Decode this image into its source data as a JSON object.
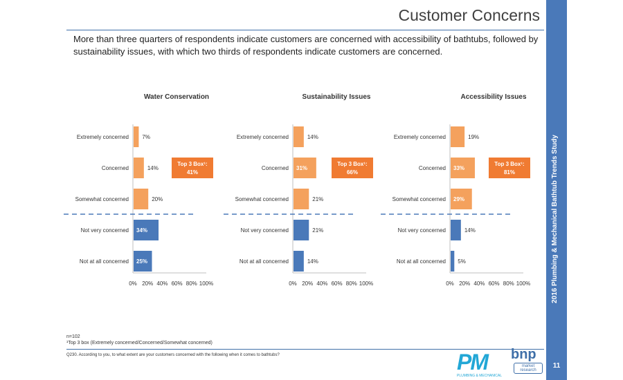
{
  "page": {
    "title": "Customer Concerns",
    "subtitle": "More than three quarters of respondents indicate customers are concerned with accessibility of bathtubs, followed by sustainability issues, with which two thirds of respondents indicate customers are concerned.",
    "sidebar_text": "2016 Plumbing & Mechanical Bathtub Trends Study",
    "page_number": "11",
    "footnote_n": "n=102",
    "footnote_topbox": "¹Top 3 box (Extremely concerned/Concerned/Somewhat concerned)",
    "footnote_question": "Q230. According to you, to what extent are your customers concerned with the following when it comes to bathtubs?",
    "logo_pm": "PM",
    "logo_pm_sub": "PLUMBING & MECHANICAL",
    "logo_bnp": "bnp",
    "logo_bnp_sub": "market research"
  },
  "colors": {
    "orange": "#f4a15d",
    "blue": "#4a79b9",
    "badge": "#f07b32",
    "rule": "#3f6fa8"
  },
  "chart_data": [
    {
      "type": "bar",
      "orientation": "horizontal",
      "title": "Water Conservation",
      "categories": [
        "Extremely concerned",
        "Concerned",
        "Somewhat concerned",
        "Not very concerned",
        "Not at all concerned"
      ],
      "values": [
        7,
        14,
        20,
        34,
        25
      ],
      "labels": [
        "7%",
        "14%",
        "20%",
        "34%",
        "25%"
      ],
      "xlim": [
        0,
        100
      ],
      "ticks": [
        "0%",
        "20%",
        "40%",
        "60%",
        "80%",
        "100%"
      ],
      "callout": {
        "line1": "Top 3 Box¹:",
        "line2": "41%"
      }
    },
    {
      "type": "bar",
      "orientation": "horizontal",
      "title": "Sustainability Issues",
      "categories": [
        "Extremely concerned",
        "Concerned",
        "Somewhat concerned",
        "Not very concerned",
        "Not at all concerned"
      ],
      "values": [
        14,
        31,
        21,
        21,
        14
      ],
      "labels": [
        "14%",
        "31%",
        "21%",
        "21%",
        "14%"
      ],
      "xlim": [
        0,
        100
      ],
      "ticks": [
        "0%",
        "20%",
        "40%",
        "60%",
        "80%",
        "100%"
      ],
      "callout": {
        "line1": "Top 3 Box¹:",
        "line2": "66%"
      }
    },
    {
      "type": "bar",
      "orientation": "horizontal",
      "title": "Accessibility Issues",
      "categories": [
        "Extremely concerned",
        "Concerned",
        "Somewhat concerned",
        "Not very concerned",
        "Not at all concerned"
      ],
      "values": [
        19,
        33,
        29,
        14,
        5
      ],
      "labels": [
        "19%",
        "33%",
        "29%",
        "14%",
        "5%"
      ],
      "xlim": [
        0,
        100
      ],
      "ticks": [
        "0%",
        "20%",
        "40%",
        "60%",
        "80%",
        "100%"
      ],
      "callout": {
        "line1": "Top 3 Box¹:",
        "line2": "81%"
      }
    }
  ]
}
